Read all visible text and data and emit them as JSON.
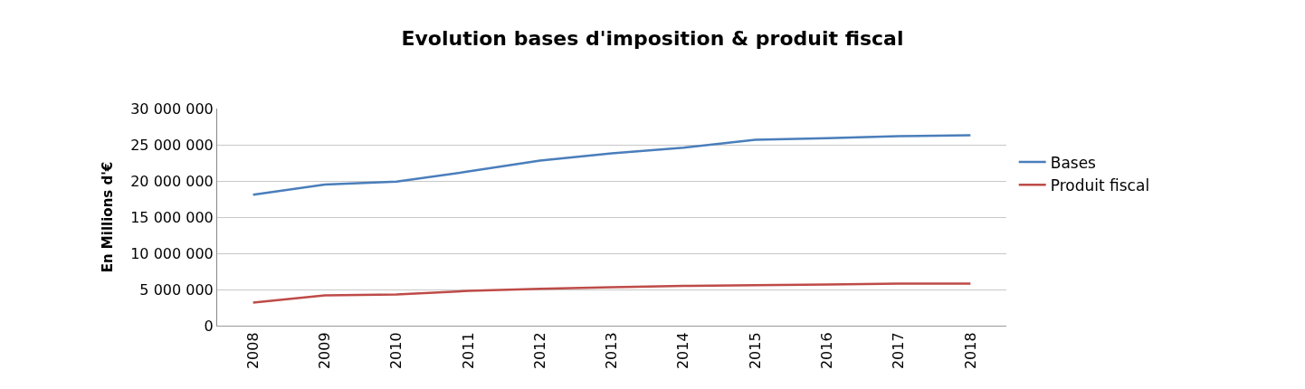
{
  "chart_data": {
    "type": "line",
    "title": "Evolution bases d'imposition & produit fiscal",
    "ylabel": "En Millions d'€",
    "categories": [
      "2008",
      "2009",
      "2010",
      "2011",
      "2012",
      "2013",
      "2014",
      "2015",
      "2016",
      "2017",
      "2018"
    ],
    "series": [
      {
        "name": "Bases",
        "color": "#4a7ebb",
        "values": [
          18100000,
          19500000,
          19900000,
          21300000,
          22800000,
          23800000,
          24600000,
          25700000,
          25900000,
          26200000,
          26300000
        ]
      },
      {
        "name": "Produit fiscal",
        "color": "#be4b48",
        "values": [
          3200000,
          4200000,
          4300000,
          4800000,
          5100000,
          5300000,
          5500000,
          5600000,
          5700000,
          5800000,
          5800000
        ]
      }
    ],
    "ylim": [
      0,
      30000000
    ],
    "yticks": [
      {
        "value": 0,
        "label": "0"
      },
      {
        "value": 5000000,
        "label": "5 000 000"
      },
      {
        "value": 10000000,
        "label": "10 000 000"
      },
      {
        "value": 15000000,
        "label": "15 000 000"
      },
      {
        "value": 20000000,
        "label": "20 000 000"
      },
      {
        "value": 25000000,
        "label": "25 000 000"
      },
      {
        "value": 30000000,
        "label": "30 000 000"
      }
    ],
    "grid": "y",
    "legend": "right",
    "marker": "none",
    "line_style": "solid"
  }
}
